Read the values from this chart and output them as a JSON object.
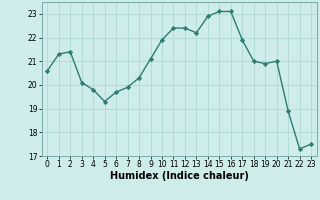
{
  "x": [
    0,
    1,
    2,
    3,
    4,
    5,
    6,
    7,
    8,
    9,
    10,
    11,
    12,
    13,
    14,
    15,
    16,
    17,
    18,
    19,
    20,
    21,
    22,
    23
  ],
  "y": [
    20.6,
    21.3,
    21.4,
    20.1,
    19.8,
    19.3,
    19.7,
    19.9,
    20.3,
    21.1,
    21.9,
    22.4,
    22.4,
    22.2,
    22.9,
    23.1,
    23.1,
    21.9,
    21.0,
    20.9,
    21.0,
    18.9,
    17.3,
    17.5
  ],
  "line_color": "#2e7d72",
  "marker": "D",
  "marker_size": 2.2,
  "bg_color": "#cdecea",
  "grid_color": "#b0d8d4",
  "xlabel": "Humidex (Indice chaleur)",
  "xlim": [
    -0.5,
    23.5
  ],
  "ylim": [
    17,
    23.5
  ],
  "yticks": [
    17,
    18,
    19,
    20,
    21,
    22,
    23
  ],
  "xticks": [
    0,
    1,
    2,
    3,
    4,
    5,
    6,
    7,
    8,
    9,
    10,
    11,
    12,
    13,
    14,
    15,
    16,
    17,
    18,
    19,
    20,
    21,
    22,
    23
  ],
  "tick_fontsize": 5.5,
  "label_fontsize": 7,
  "linewidth": 1.0
}
